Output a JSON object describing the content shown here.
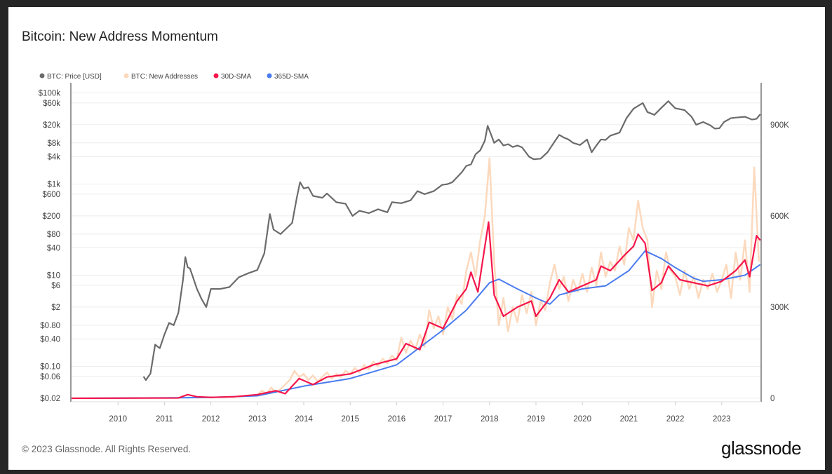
{
  "title": "Bitcoin: New Address Momentum",
  "footer": "© 2023 Glassnode. All Rights Reserved.",
  "logo": "glassnode",
  "chart_data": {
    "type": "line",
    "title": "Bitcoin: New Address Momentum",
    "legend_position": "top-left",
    "grid": true,
    "legend": [
      {
        "name": "BTC: Price [USD]",
        "color": "#6b6b6b"
      },
      {
        "name": "BTC: New Addresses",
        "color": "#fcd9bd"
      },
      {
        "name": "30D-SMA",
        "color": "#f5154a"
      },
      {
        "name": "365D-SMA",
        "color": "#4a7cf0"
      }
    ],
    "x_axis": {
      "range": [
        2009.0,
        2023.83
      ],
      "ticks": [
        2010,
        2011,
        2012,
        2013,
        2014,
        2015,
        2016,
        2017,
        2018,
        2019,
        2020,
        2021,
        2022,
        2023
      ]
    },
    "y_left": {
      "scale": "log",
      "range": [
        0.02,
        100000
      ],
      "ticks": [
        {
          "v": 100000,
          "label": "$100k"
        },
        {
          "v": 60000,
          "label": "$60k"
        },
        {
          "v": 20000,
          "label": "$20k"
        },
        {
          "v": 8000,
          "label": "$8k"
        },
        {
          "v": 4000,
          "label": "$4k"
        },
        {
          "v": 1000,
          "label": "$1k"
        },
        {
          "v": 600,
          "label": "$600"
        },
        {
          "v": 200,
          "label": "$200"
        },
        {
          "v": 80,
          "label": "$80"
        },
        {
          "v": 40,
          "label": "$40"
        },
        {
          "v": 10,
          "label": "$10"
        },
        {
          "v": 6,
          "label": "$6"
        },
        {
          "v": 2,
          "label": "$2"
        },
        {
          "v": 0.8,
          "label": "$0.80"
        },
        {
          "v": 0.4,
          "label": "$0.40"
        },
        {
          "v": 0.1,
          "label": "$0.10"
        },
        {
          "v": 0.06,
          "label": "$0.06"
        },
        {
          "v": 0.02,
          "label": "$0.02"
        }
      ]
    },
    "y_right": {
      "scale": "linear",
      "unit": "K",
      "range": [
        0,
        1015
      ],
      "ticks": [
        {
          "v": 0,
          "label": "0"
        },
        {
          "v": 300,
          "label": "300K"
        },
        {
          "v": 600,
          "label": "600K"
        },
        {
          "v": 900,
          "label": "900K"
        }
      ]
    },
    "series": [
      {
        "name": "BTC: Price [USD]",
        "axis": "left",
        "points": [
          [
            2010.55,
            0.06
          ],
          [
            2010.6,
            0.05
          ],
          [
            2010.7,
            0.07
          ],
          [
            2010.8,
            0.3
          ],
          [
            2010.9,
            0.25
          ],
          [
            2011.0,
            0.5
          ],
          [
            2011.1,
            0.9
          ],
          [
            2011.2,
            0.8
          ],
          [
            2011.3,
            1.5
          ],
          [
            2011.4,
            8
          ],
          [
            2011.45,
            25
          ],
          [
            2011.5,
            15
          ],
          [
            2011.55,
            14
          ],
          [
            2011.6,
            10
          ],
          [
            2011.7,
            5
          ],
          [
            2011.8,
            3
          ],
          [
            2011.9,
            2
          ],
          [
            2012.0,
            5
          ],
          [
            2012.2,
            5
          ],
          [
            2012.4,
            5.5
          ],
          [
            2012.6,
            9
          ],
          [
            2012.8,
            11
          ],
          [
            2013.0,
            13
          ],
          [
            2013.15,
            30
          ],
          [
            2013.27,
            220
          ],
          [
            2013.35,
            100
          ],
          [
            2013.5,
            80
          ],
          [
            2013.6,
            100
          ],
          [
            2013.75,
            140
          ],
          [
            2013.85,
            500
          ],
          [
            2013.92,
            1100
          ],
          [
            2014.0,
            800
          ],
          [
            2014.1,
            850
          ],
          [
            2014.2,
            550
          ],
          [
            2014.4,
            500
          ],
          [
            2014.5,
            620
          ],
          [
            2014.7,
            400
          ],
          [
            2014.9,
            370
          ],
          [
            2015.05,
            200
          ],
          [
            2015.2,
            260
          ],
          [
            2015.4,
            230
          ],
          [
            2015.6,
            280
          ],
          [
            2015.8,
            240
          ],
          [
            2015.9,
            400
          ],
          [
            2016.1,
            380
          ],
          [
            2016.3,
            440
          ],
          [
            2016.45,
            700
          ],
          [
            2016.6,
            600
          ],
          [
            2016.8,
            700
          ],
          [
            2016.98,
            960
          ],
          [
            2017.1,
            1000
          ],
          [
            2017.2,
            1100
          ],
          [
            2017.4,
            1800
          ],
          [
            2017.5,
            2500
          ],
          [
            2017.6,
            2700
          ],
          [
            2017.7,
            4500
          ],
          [
            2017.8,
            5500
          ],
          [
            2017.9,
            9000
          ],
          [
            2017.96,
            19000
          ],
          [
            2018.05,
            11000
          ],
          [
            2018.1,
            8000
          ],
          [
            2018.2,
            9500
          ],
          [
            2018.3,
            7000
          ],
          [
            2018.4,
            7500
          ],
          [
            2018.5,
            6500
          ],
          [
            2018.6,
            7000
          ],
          [
            2018.7,
            6400
          ],
          [
            2018.85,
            4000
          ],
          [
            2018.95,
            3500
          ],
          [
            2019.1,
            3600
          ],
          [
            2019.25,
            5000
          ],
          [
            2019.4,
            8500
          ],
          [
            2019.5,
            12000
          ],
          [
            2019.6,
            10500
          ],
          [
            2019.7,
            9500
          ],
          [
            2019.8,
            8000
          ],
          [
            2019.95,
            7200
          ],
          [
            2020.1,
            9500
          ],
          [
            2020.2,
            5000
          ],
          [
            2020.3,
            7000
          ],
          [
            2020.4,
            9500
          ],
          [
            2020.5,
            9300
          ],
          [
            2020.6,
            11500
          ],
          [
            2020.8,
            13500
          ],
          [
            2020.95,
            28000
          ],
          [
            2021.1,
            45000
          ],
          [
            2021.3,
            60000
          ],
          [
            2021.4,
            38000
          ],
          [
            2021.55,
            33000
          ],
          [
            2021.7,
            47000
          ],
          [
            2021.85,
            66000
          ],
          [
            2022.0,
            46000
          ],
          [
            2022.2,
            42000
          ],
          [
            2022.35,
            30000
          ],
          [
            2022.45,
            20000
          ],
          [
            2022.6,
            23000
          ],
          [
            2022.75,
            19500
          ],
          [
            2022.85,
            16500
          ],
          [
            2022.95,
            16800
          ],
          [
            2023.05,
            23000
          ],
          [
            2023.2,
            28000
          ],
          [
            2023.35,
            29000
          ],
          [
            2023.5,
            30000
          ],
          [
            2023.65,
            26000
          ],
          [
            2023.75,
            27000
          ],
          [
            2023.83,
            34000
          ]
        ]
      },
      {
        "name": "BTC: New Addresses",
        "axis": "right",
        "start": 2013.0,
        "step": 0.1,
        "values": [
          10,
          25,
          15,
          35,
          20,
          30,
          45,
          60,
          90,
          70,
          80,
          60,
          75,
          55,
          70,
          85,
          65,
          80,
          70,
          90,
          80,
          100,
          85,
          110,
          95,
          120,
          105,
          130,
          115,
          140,
          125,
          200,
          150,
          190,
          160,
          210,
          170,
          290,
          230,
          270,
          210,
          300,
          260,
          340,
          310,
          420,
          480,
          400,
          520,
          600,
          790,
          450,
          240,
          330,
          220,
          300,
          250,
          340,
          280,
          350,
          240,
          320,
          290,
          380,
          440,
          360,
          400,
          320,
          390,
          350,
          410,
          350,
          430,
          370,
          480,
          400,
          450,
          420,
          500,
          440,
          560,
          520,
          650,
          560,
          520,
          300,
          420,
          360,
          480,
          420,
          400,
          340,
          420,
          360,
          400,
          330,
          390,
          360,
          410,
          350,
          390,
          440,
          330,
          480,
          390,
          520,
          350,
          760,
          450
        ]
      },
      {
        "name": "30D-SMA",
        "axis": "right",
        "points": [
          [
            2009.0,
            0
          ],
          [
            2011.3,
            1
          ],
          [
            2011.5,
            12
          ],
          [
            2011.7,
            5
          ],
          [
            2012.0,
            3
          ],
          [
            2012.5,
            5
          ],
          [
            2013.0,
            12
          ],
          [
            2013.4,
            25
          ],
          [
            2013.6,
            15
          ],
          [
            2013.9,
            65
          ],
          [
            2014.2,
            45
          ],
          [
            2014.5,
            70
          ],
          [
            2015.0,
            80
          ],
          [
            2015.5,
            110
          ],
          [
            2016.0,
            130
          ],
          [
            2016.2,
            180
          ],
          [
            2016.5,
            160
          ],
          [
            2016.7,
            250
          ],
          [
            2017.0,
            230
          ],
          [
            2017.3,
            320
          ],
          [
            2017.5,
            360
          ],
          [
            2017.6,
            415
          ],
          [
            2017.75,
            350
          ],
          [
            2017.98,
            580
          ],
          [
            2018.1,
            340
          ],
          [
            2018.3,
            270
          ],
          [
            2018.6,
            300
          ],
          [
            2018.9,
            320
          ],
          [
            2019.0,
            270
          ],
          [
            2019.3,
            330
          ],
          [
            2019.5,
            390
          ],
          [
            2019.7,
            350
          ],
          [
            2020.0,
            370
          ],
          [
            2020.3,
            390
          ],
          [
            2020.4,
            435
          ],
          [
            2020.6,
            420
          ],
          [
            2020.9,
            470
          ],
          [
            2021.1,
            500
          ],
          [
            2021.2,
            540
          ],
          [
            2021.35,
            510
          ],
          [
            2021.5,
            355
          ],
          [
            2021.7,
            380
          ],
          [
            2021.85,
            435
          ],
          [
            2022.1,
            390
          ],
          [
            2022.4,
            380
          ],
          [
            2022.7,
            370
          ],
          [
            2023.0,
            385
          ],
          [
            2023.3,
            420
          ],
          [
            2023.5,
            455
          ],
          [
            2023.6,
            400
          ],
          [
            2023.75,
            535
          ],
          [
            2023.83,
            520
          ]
        ]
      },
      {
        "name": "365D-SMA",
        "axis": "right",
        "points": [
          [
            2009.0,
            0
          ],
          [
            2011.5,
            2
          ],
          [
            2012.0,
            3
          ],
          [
            2013.0,
            8
          ],
          [
            2014.0,
            40
          ],
          [
            2015.0,
            65
          ],
          [
            2016.0,
            110
          ],
          [
            2017.0,
            225
          ],
          [
            2017.5,
            290
          ],
          [
            2018.0,
            380
          ],
          [
            2018.2,
            392
          ],
          [
            2018.6,
            360
          ],
          [
            2019.0,
            330
          ],
          [
            2019.3,
            310
          ],
          [
            2019.5,
            340
          ],
          [
            2020.0,
            360
          ],
          [
            2020.5,
            370
          ],
          [
            2021.0,
            420
          ],
          [
            2021.35,
            485
          ],
          [
            2021.7,
            460
          ],
          [
            2022.0,
            430
          ],
          [
            2022.4,
            395
          ],
          [
            2022.6,
            385
          ],
          [
            2023.0,
            390
          ],
          [
            2023.5,
            405
          ],
          [
            2023.83,
            440
          ]
        ]
      }
    ]
  }
}
